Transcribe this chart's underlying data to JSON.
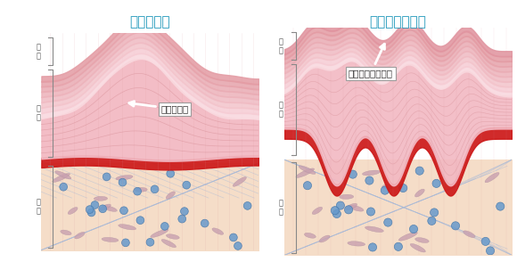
{
  "title_left": "老人性イボ",
  "title_right": "ウイルス性イボ",
  "title_color": "#2299bb",
  "label_kaku": "角\n質",
  "label_hyohi": "表\n皮",
  "label_shinpi": "真\n皮",
  "annotation_left": "表皮の増殖",
  "annotation_right": "角質が盛り上がる",
  "bg_color": "#ffffff",
  "dermis_color": "#f5ddc8",
  "dermis_grid_color": "#aabbd8",
  "red_layer_color": "#cc1818",
  "epi_color": "#f0b0bc",
  "horn_base_color": "#f5c8d0",
  "label_color": "#555555",
  "bracket_color": "#888888"
}
